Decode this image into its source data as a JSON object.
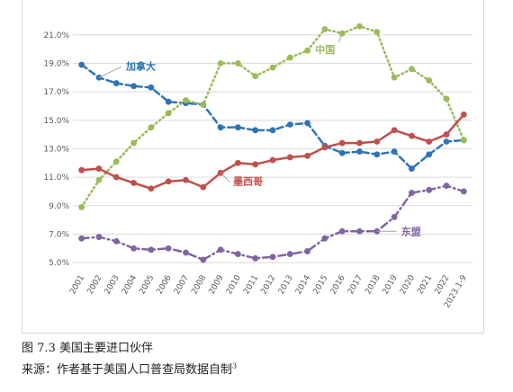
{
  "figure": {
    "caption": "图 7.3 美国主要进口伙伴",
    "source": "来源：作者基于美国人口普查局数据自制",
    "footnote_mark": "3"
  },
  "chart_data": {
    "type": "line",
    "title": "",
    "xlabel": "",
    "ylabel": "",
    "ylim": [
      4.5,
      22.5
    ],
    "yticks": [
      "5.0%",
      "7.0%",
      "9.0%",
      "11.0%",
      "13.0%",
      "15.0%",
      "17.0%",
      "19.0%",
      "21.0%"
    ],
    "ytick_values": [
      5,
      7,
      9,
      11,
      13,
      15,
      17,
      19,
      21
    ],
    "grid": true,
    "categories": [
      "2001",
      "2002",
      "2003",
      "2004",
      "2005",
      "2006",
      "2007",
      "2008",
      "2009",
      "2010",
      "2011",
      "2012",
      "2013",
      "2014",
      "2015",
      "2016",
      "2017",
      "2018",
      "2019",
      "2020",
      "2021",
      "2022",
      "2023.1-9"
    ],
    "series": [
      {
        "name": "加拿大",
        "color": "#2e75b6",
        "dash": "dashed",
        "values": [
          18.9,
          18.0,
          17.6,
          17.4,
          17.3,
          16.3,
          16.2,
          16.1,
          14.5,
          14.5,
          14.3,
          14.3,
          14.7,
          14.8,
          13.2,
          12.7,
          12.8,
          12.6,
          12.8,
          11.6,
          12.6,
          13.5,
          13.6
        ]
      },
      {
        "name": "中国",
        "color": "#9bbb59",
        "dash": "dotted",
        "values": [
          8.9,
          10.8,
          12.1,
          13.4,
          14.5,
          15.5,
          16.4,
          16.1,
          19.0,
          19.0,
          18.1,
          18.7,
          19.4,
          19.9,
          21.4,
          21.1,
          21.6,
          21.2,
          18.0,
          18.6,
          17.8,
          16.5,
          13.6
        ]
      },
      {
        "name": "墨西哥",
        "color": "#c0504d",
        "dash": "solid",
        "values": [
          11.5,
          11.6,
          11.0,
          10.6,
          10.2,
          10.7,
          10.8,
          10.3,
          11.3,
          12.0,
          11.9,
          12.2,
          12.4,
          12.5,
          13.1,
          13.4,
          13.4,
          13.5,
          14.3,
          13.9,
          13.5,
          14.0,
          15.4
        ]
      },
      {
        "name": "东盟",
        "color": "#8064a2",
        "dash": "dashdot",
        "values": [
          6.7,
          6.8,
          6.5,
          6.0,
          5.9,
          6.0,
          5.7,
          5.2,
          5.9,
          5.6,
          5.3,
          5.4,
          5.6,
          5.8,
          6.7,
          7.2,
          7.2,
          7.2,
          8.2,
          9.9,
          10.1,
          10.4,
          10.0
        ]
      }
    ]
  }
}
